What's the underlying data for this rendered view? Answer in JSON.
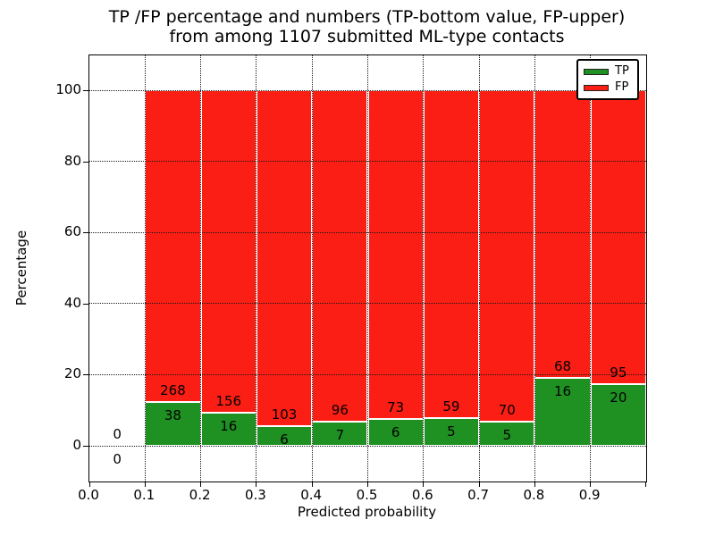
{
  "figure": {
    "title_line1": "TP /FP percentage and numbers (TP-bottom value, FP-upper)",
    "title_line2": "from among 1107 submitted ML-type contacts",
    "xlabel": "Predicted probability",
    "ylabel": "Percentage"
  },
  "legend": {
    "items": [
      {
        "label": "TP",
        "color": "#1f9122"
      },
      {
        "label": "FP",
        "color": "#fa1e14"
      }
    ]
  },
  "chart_data": {
    "type": "bar",
    "stacked": true,
    "normalized_to_percent": true,
    "title": "TP /FP percentage and numbers (TP-bottom value, FP-upper) from among 1107 submitted ML-type contacts",
    "xlabel": "Predicted probability",
    "ylabel": "Percentage",
    "total_contacts": 1107,
    "bins": [
      [
        0.0,
        0.1
      ],
      [
        0.1,
        0.2
      ],
      [
        0.2,
        0.3
      ],
      [
        0.3,
        0.4
      ],
      [
        0.4,
        0.5
      ],
      [
        0.5,
        0.6
      ],
      [
        0.6,
        0.7
      ],
      [
        0.7,
        0.8
      ],
      [
        0.8,
        0.9
      ],
      [
        0.9,
        1.0
      ]
    ],
    "series": [
      {
        "name": "TP",
        "color": "#1f9122",
        "counts": [
          0,
          38,
          16,
          6,
          7,
          6,
          5,
          5,
          16,
          20
        ]
      },
      {
        "name": "FP",
        "color": "#fa1e14",
        "counts": [
          0,
          268,
          156,
          103,
          96,
          73,
          59,
          70,
          68,
          95
        ]
      }
    ],
    "tp_percent": [
      0,
      12.4,
      9.3,
      5.5,
      6.8,
      7.6,
      7.8,
      6.7,
      19.0,
      17.4
    ],
    "fp_percent": [
      0,
      87.6,
      90.7,
      94.5,
      93.2,
      92.4,
      92.2,
      93.3,
      81.0,
      82.6
    ],
    "yticks": [
      0,
      20,
      40,
      60,
      80,
      100
    ],
    "xtick_labels": [
      "0.0",
      "0.1",
      "0.2",
      "0.3",
      "0.4",
      "0.5",
      "0.6",
      "0.7",
      "0.8",
      "0.9"
    ],
    "ylim": [
      -10,
      110
    ],
    "xlim": [
      0.0,
      1.0
    ],
    "grid": "dotted-black-above-bars",
    "bar_edge_color": "#ffffff",
    "legend_position": "upper right",
    "label_note": "FP count printed above TP/FP boundary, TP count printed below it"
  }
}
